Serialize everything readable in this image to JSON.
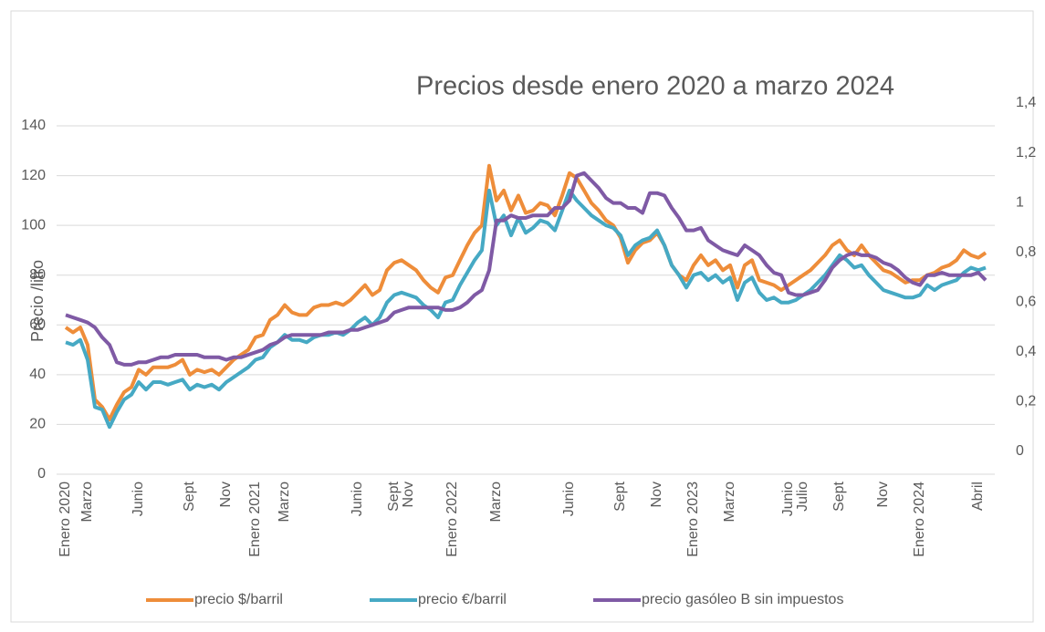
{
  "chart_data": {
    "type": "line",
    "title": "Precios desde enero 2020 a marzo 2024",
    "ylabel": "Precio /litro",
    "categories": [
      "Enero 2020",
      null,
      null,
      "Marzo",
      null,
      null,
      null,
      null,
      null,
      null,
      "Junio",
      null,
      null,
      null,
      null,
      null,
      null,
      "Sept",
      null,
      null,
      null,
      null,
      "Nov",
      null,
      null,
      null,
      "Enero 2021",
      null,
      null,
      null,
      "Marzo",
      null,
      null,
      null,
      null,
      null,
      null,
      null,
      null,
      null,
      "Junio",
      null,
      null,
      null,
      null,
      "Sept",
      null,
      "Nov",
      null,
      null,
      null,
      null,
      null,
      "Enero 2022",
      null,
      null,
      null,
      null,
      null,
      "Marzo",
      null,
      null,
      null,
      null,
      null,
      null,
      null,
      null,
      null,
      "Junio",
      null,
      null,
      null,
      null,
      null,
      null,
      "Sept",
      null,
      null,
      null,
      null,
      "Nov",
      null,
      null,
      null,
      null,
      "Enero 2023",
      null,
      null,
      null,
      null,
      "Marzo",
      null,
      null,
      null,
      null,
      null,
      null,
      null,
      "Junio",
      null,
      "Julio",
      null,
      null,
      null,
      null,
      "Sept",
      null,
      null,
      null,
      null,
      null,
      "Nov",
      null,
      null,
      null,
      null,
      "Enero 2024",
      null,
      null,
      null,
      null,
      null,
      null,
      null,
      "Abril",
      null
    ],
    "series": [
      {
        "name": "precio $/barril",
        "color": "#ee8d3a",
        "axis": "y",
        "values": [
          59,
          57,
          59,
          52,
          30,
          27,
          22,
          28,
          33,
          35,
          42,
          40,
          43,
          43,
          43,
          44,
          46,
          40,
          42,
          41,
          42,
          40,
          43,
          46,
          48,
          50,
          55,
          56,
          62,
          64,
          68,
          65,
          64,
          64,
          67,
          68,
          68,
          69,
          68,
          70,
          73,
          76,
          72,
          74,
          82,
          85,
          86,
          84,
          82,
          78,
          75,
          73,
          79,
          80,
          86,
          92,
          97,
          100,
          124,
          110,
          114,
          106,
          112,
          105,
          106,
          109,
          108,
          104,
          112,
          121,
          119,
          114,
          109,
          106,
          102,
          100,
          95,
          85,
          90,
          93,
          94,
          97,
          92,
          84,
          80,
          78,
          84,
          88,
          84,
          86,
          82,
          84,
          75,
          84,
          86,
          78,
          77,
          76,
          74,
          76,
          78,
          80,
          82,
          85,
          88,
          92,
          94,
          90,
          88,
          92,
          88,
          85,
          82,
          81,
          79,
          77,
          78,
          78,
          80,
          81,
          83,
          84,
          86,
          90,
          88,
          87,
          89
        ]
      },
      {
        "name": "precio €/barril",
        "color": "#46a9c4",
        "axis": "y",
        "values": [
          53,
          52,
          54,
          46,
          27,
          26,
          19,
          25,
          30,
          32,
          37,
          34,
          37,
          37,
          36,
          37,
          38,
          34,
          36,
          35,
          36,
          34,
          37,
          39,
          41,
          43,
          46,
          47,
          51,
          53,
          56,
          54,
          54,
          53,
          55,
          56,
          56,
          57,
          56,
          58,
          61,
          63,
          60,
          63,
          69,
          72,
          73,
          72,
          71,
          68,
          66,
          63,
          69,
          70,
          76,
          81,
          86,
          90,
          114,
          100,
          104,
          96,
          103,
          97,
          99,
          102,
          101,
          98,
          106,
          114,
          110,
          107,
          104,
          102,
          100,
          99,
          96,
          88,
          92,
          94,
          95,
          98,
          92,
          84,
          80,
          75,
          80,
          81,
          78,
          80,
          77,
          79,
          70,
          77,
          79,
          73,
          70,
          71,
          69,
          69,
          70,
          72,
          74,
          77,
          80,
          84,
          88,
          86,
          83,
          84,
          80,
          77,
          74,
          73,
          72,
          71,
          71,
          72,
          76,
          74,
          76,
          77,
          78,
          81,
          83,
          82,
          83
        ]
      },
      {
        "name": "precio gasóleo B sin impuestos",
        "color": "#7f5aa5",
        "axis": "y2",
        "values": [
          0.64,
          0.63,
          0.62,
          0.61,
          0.59,
          0.55,
          0.52,
          0.45,
          0.44,
          0.44,
          0.45,
          0.45,
          0.46,
          0.47,
          0.47,
          0.48,
          0.48,
          0.48,
          0.48,
          0.47,
          0.47,
          0.47,
          0.46,
          0.47,
          0.47,
          0.48,
          0.49,
          0.5,
          0.52,
          0.53,
          0.55,
          0.56,
          0.56,
          0.56,
          0.56,
          0.56,
          0.57,
          0.57,
          0.57,
          0.58,
          0.58,
          0.59,
          0.6,
          0.61,
          0.62,
          0.65,
          0.66,
          0.67,
          0.67,
          0.67,
          0.67,
          0.67,
          0.66,
          0.66,
          0.67,
          0.69,
          0.72,
          0.74,
          0.82,
          1.02,
          1.02,
          1.04,
          1.03,
          1.03,
          1.04,
          1.04,
          1.04,
          1.07,
          1.07,
          1.1,
          1.2,
          1.21,
          1.18,
          1.15,
          1.11,
          1.09,
          1.09,
          1.07,
          1.07,
          1.05,
          1.13,
          1.13,
          1.12,
          1.07,
          1.03,
          0.98,
          0.98,
          0.99,
          0.94,
          0.92,
          0.9,
          0.89,
          0.88,
          0.92,
          0.9,
          0.88,
          0.84,
          0.81,
          0.8,
          0.73,
          0.72,
          0.72,
          0.73,
          0.74,
          0.78,
          0.83,
          0.86,
          0.88,
          0.89,
          0.88,
          0.88,
          0.87,
          0.85,
          0.84,
          0.82,
          0.79,
          0.77,
          0.76,
          0.8,
          0.8,
          0.81,
          0.8,
          0.8,
          0.8,
          0.8,
          0.81,
          0.78
        ]
      }
    ],
    "ylim": [
      0,
      140
    ],
    "yticks": [
      0,
      20,
      40,
      60,
      80,
      100,
      120,
      140
    ],
    "y2lim": [
      0,
      1.4
    ],
    "y2ticks": [
      0,
      {
        "value": 0.2,
        "label": "0,2"
      },
      {
        "value": 0.4,
        "label": "0,4"
      },
      {
        "value": 0.6,
        "label": "0,6"
      },
      {
        "value": 0.8,
        "label": "0,8"
      },
      1,
      {
        "value": 1.2,
        "label": "1,2"
      },
      {
        "value": 1.4,
        "label": "1,4"
      }
    ],
    "grid": true,
    "legend": "bottom"
  }
}
